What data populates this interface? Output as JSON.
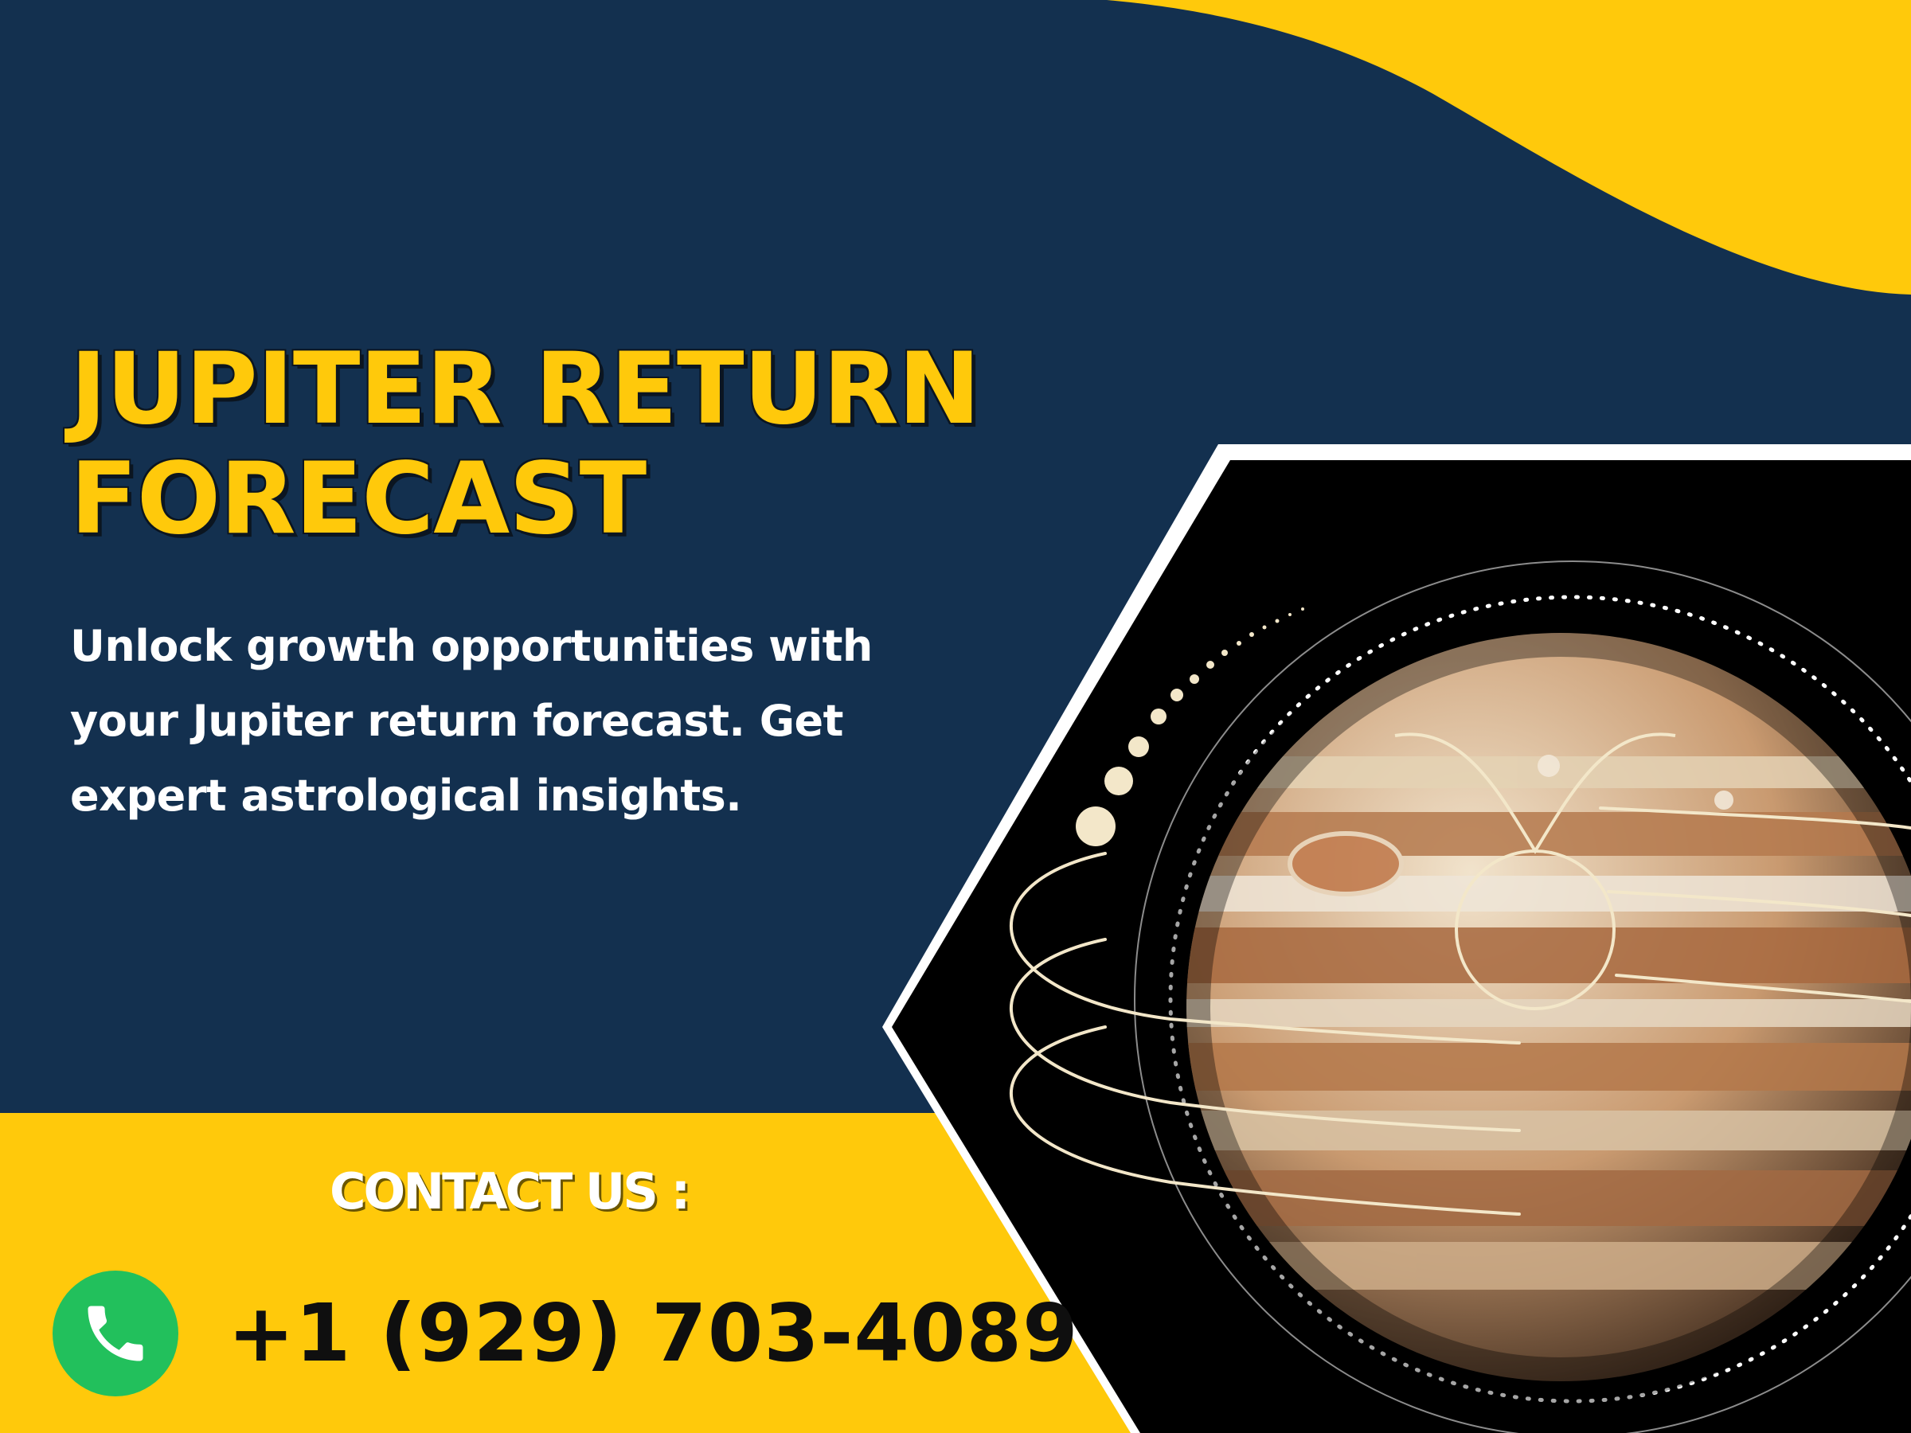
{
  "banner": {
    "title_line1": "JUPITER RETURN",
    "title_line2": "FORECAST",
    "subtitle": "Unlock growth opportunities with your Jupiter return forecast. Get expert astrological insights."
  },
  "contact": {
    "label": "CONTACT US :",
    "phone": "+1 (929) 703-4089",
    "phone_icon": "phone-handset-icon"
  },
  "colors": {
    "navy": "#13304f",
    "yellow": "#ffc90b",
    "white": "#ffffff",
    "black": "#000000",
    "call_green": "#22c05c"
  }
}
